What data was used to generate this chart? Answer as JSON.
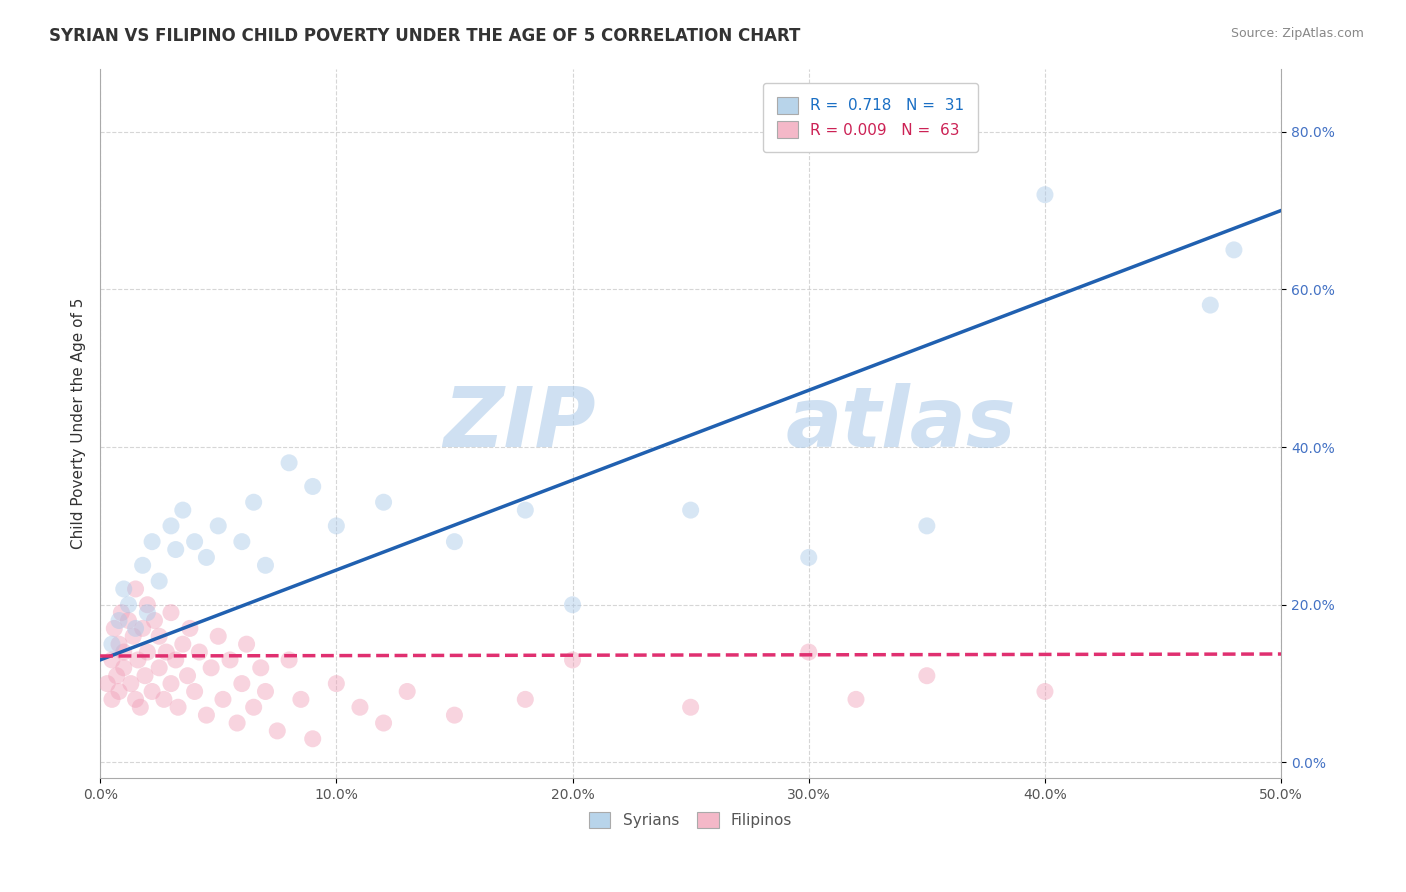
{
  "title": "SYRIAN VS FILIPINO CHILD POVERTY UNDER THE AGE OF 5 CORRELATION CHART",
  "source": "Source: ZipAtlas.com",
  "ylabel": "Child Poverty Under the Age of 5",
  "watermark": "ZIPatlas",
  "xlim": [
    0.0,
    0.5
  ],
  "ylim": [
    -0.02,
    0.88
  ],
  "xticks": [
    0.0,
    0.1,
    0.2,
    0.3,
    0.4,
    0.5
  ],
  "xticklabels": [
    "0.0%",
    "10.0%",
    "20.0%",
    "30.0%",
    "40.0%",
    "50.0%"
  ],
  "yticks": [
    0.0,
    0.2,
    0.4,
    0.6,
    0.8
  ],
  "yticklabels": [
    "0.0%",
    "20.0%",
    "40.0%",
    "60.0%",
    "80.0%"
  ],
  "syrians_R": 0.718,
  "syrians_N": 31,
  "filipinos_R": 0.009,
  "filipinos_N": 63,
  "syrians_color": "#a8c8e8",
  "filipinos_color": "#f0a0b8",
  "syrians_line_color": "#2060b0",
  "filipinos_line_color": "#e03070",
  "legend_box_color_syrians": "#b8d4ea",
  "legend_box_color_filipinos": "#f4b8c8",
  "syrians_line_intercept": 0.13,
  "syrians_line_slope": 1.14,
  "filipinos_line_intercept": 0.135,
  "filipinos_line_slope": 0.005,
  "syrians_x": [
    0.005,
    0.008,
    0.01,
    0.012,
    0.015,
    0.018,
    0.02,
    0.022,
    0.025,
    0.03,
    0.032,
    0.035,
    0.04,
    0.045,
    0.05,
    0.06,
    0.065,
    0.07,
    0.08,
    0.09,
    0.1,
    0.12,
    0.15,
    0.18,
    0.2,
    0.25,
    0.3,
    0.35,
    0.4,
    0.47,
    0.48
  ],
  "syrians_y": [
    0.15,
    0.18,
    0.22,
    0.2,
    0.17,
    0.25,
    0.19,
    0.28,
    0.23,
    0.3,
    0.27,
    0.32,
    0.28,
    0.26,
    0.3,
    0.28,
    0.33,
    0.25,
    0.38,
    0.35,
    0.3,
    0.33,
    0.28,
    0.32,
    0.2,
    0.32,
    0.26,
    0.3,
    0.72,
    0.58,
    0.65
  ],
  "filipinos_x": [
    0.003,
    0.005,
    0.005,
    0.006,
    0.007,
    0.008,
    0.008,
    0.009,
    0.01,
    0.01,
    0.012,
    0.013,
    0.014,
    0.015,
    0.015,
    0.016,
    0.017,
    0.018,
    0.019,
    0.02,
    0.02,
    0.022,
    0.023,
    0.025,
    0.025,
    0.027,
    0.028,
    0.03,
    0.03,
    0.032,
    0.033,
    0.035,
    0.037,
    0.038,
    0.04,
    0.042,
    0.045,
    0.047,
    0.05,
    0.052,
    0.055,
    0.058,
    0.06,
    0.062,
    0.065,
    0.068,
    0.07,
    0.075,
    0.08,
    0.085,
    0.09,
    0.1,
    0.11,
    0.12,
    0.13,
    0.15,
    0.18,
    0.2,
    0.25,
    0.3,
    0.32,
    0.35,
    0.4
  ],
  "filipinos_y": [
    0.1,
    0.13,
    0.08,
    0.17,
    0.11,
    0.15,
    0.09,
    0.19,
    0.14,
    0.12,
    0.18,
    0.1,
    0.16,
    0.08,
    0.22,
    0.13,
    0.07,
    0.17,
    0.11,
    0.2,
    0.14,
    0.09,
    0.18,
    0.12,
    0.16,
    0.08,
    0.14,
    0.19,
    0.1,
    0.13,
    0.07,
    0.15,
    0.11,
    0.17,
    0.09,
    0.14,
    0.06,
    0.12,
    0.16,
    0.08,
    0.13,
    0.05,
    0.1,
    0.15,
    0.07,
    0.12,
    0.09,
    0.04,
    0.13,
    0.08,
    0.03,
    0.1,
    0.07,
    0.05,
    0.09,
    0.06,
    0.08,
    0.13,
    0.07,
    0.14,
    0.08,
    0.11,
    0.09
  ],
  "background_color": "#ffffff",
  "grid_color": "#cccccc",
  "title_fontsize": 12,
  "axis_label_fontsize": 11,
  "tick_fontsize": 10,
  "dot_size": 150,
  "dot_alpha": 0.45,
  "line_width": 2.5,
  "yaxis_label_color": "#4472c4",
  "xaxis_label_color": "#555555"
}
